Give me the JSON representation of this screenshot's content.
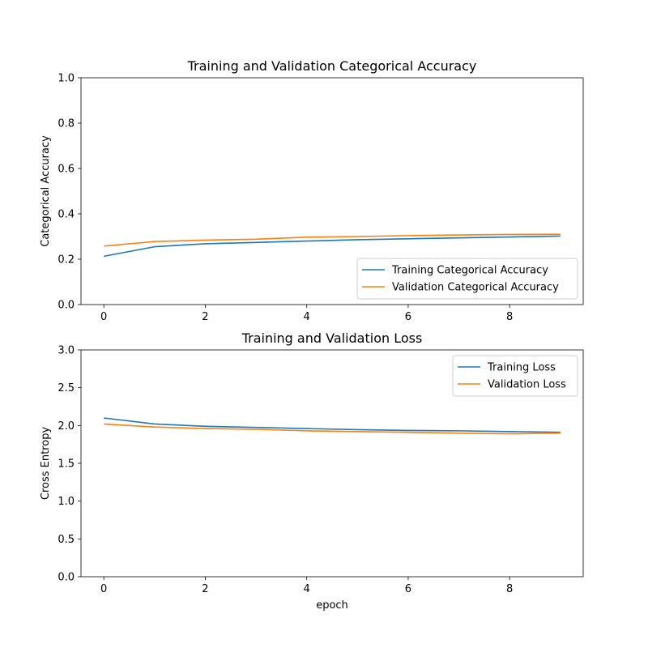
{
  "chart_data": [
    {
      "type": "line",
      "title": "Training and Validation Categorical Accuracy",
      "xlabel": "",
      "ylabel": "Categorical Accuracy",
      "xlim": [
        -0.45,
        9.45
      ],
      "ylim": [
        0,
        1
      ],
      "xticks": [
        0,
        2,
        4,
        6,
        8
      ],
      "yticks": [
        0.0,
        0.2,
        0.4,
        0.6,
        0.8,
        1.0
      ],
      "ytick_decimals": 1,
      "grid": false,
      "legend": "lower-right",
      "x": [
        0,
        1,
        2,
        3,
        4,
        5,
        6,
        7,
        8,
        9
      ],
      "series": [
        {
          "name": "Training Categorical Accuracy",
          "color": "#1f77b4",
          "values": [
            0.213,
            0.255,
            0.268,
            0.274,
            0.28,
            0.286,
            0.29,
            0.294,
            0.298,
            0.302
          ]
        },
        {
          "name": "Validation Categorical Accuracy",
          "color": "#ff7f0e",
          "values": [
            0.258,
            0.278,
            0.284,
            0.288,
            0.297,
            0.3,
            0.304,
            0.307,
            0.309,
            0.31
          ]
        }
      ]
    },
    {
      "type": "line",
      "title": "Training and Validation Loss",
      "xlabel": "epoch",
      "ylabel": "Cross Entropy",
      "xlim": [
        -0.45,
        9.45
      ],
      "ylim": [
        0,
        3
      ],
      "xticks": [
        0,
        2,
        4,
        6,
        8
      ],
      "yticks": [
        0.0,
        0.5,
        1.0,
        1.5,
        2.0,
        2.5,
        3.0
      ],
      "ytick_decimals": 1,
      "grid": false,
      "legend": "upper-right",
      "x": [
        0,
        1,
        2,
        3,
        4,
        5,
        6,
        7,
        8,
        9
      ],
      "series": [
        {
          "name": "Training Loss",
          "color": "#1f77b4",
          "values": [
            2.1,
            2.02,
            1.99,
            1.975,
            1.96,
            1.945,
            1.935,
            1.93,
            1.92,
            1.91
          ]
        },
        {
          "name": "Validation Loss",
          "color": "#ff7f0e",
          "values": [
            2.02,
            1.98,
            1.96,
            1.95,
            1.93,
            1.92,
            1.91,
            1.9,
            1.89,
            1.9
          ]
        }
      ]
    }
  ]
}
